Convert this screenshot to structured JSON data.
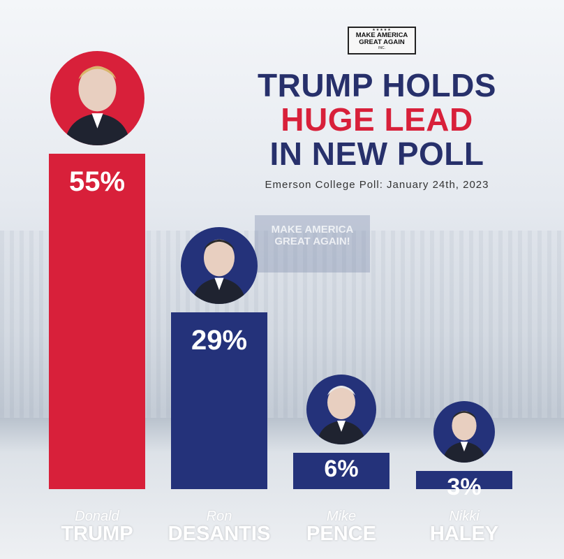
{
  "logo": {
    "stars": "★★★★★",
    "line1": "MAKE AMERICA",
    "line2": "GREAT AGAIN",
    "inc": "INC."
  },
  "banner_text": "MAKE AMERICA GREAT AGAIN!",
  "headline": {
    "line1": "TRUMP HOLDS",
    "line2": "HUGE LEAD",
    "line3": "IN NEW POLL"
  },
  "subtitle": "Emerson College Poll: January 24th, 2023",
  "colors": {
    "red": "#d8203a",
    "navy": "#27306b",
    "bar_navy": "#24327a"
  },
  "chart_data": {
    "type": "bar",
    "ylim": [
      0,
      55
    ],
    "categories": [
      "Donald TRUMP",
      "Ron DESANTIS",
      "Mike PENCE",
      "Nikki HALEY"
    ],
    "values": [
      55,
      29,
      6,
      3
    ],
    "labels": [
      "55%",
      "29%",
      "6%",
      "3%"
    ],
    "first_names": [
      "Donald",
      "Ron",
      "Mike",
      "Nikki"
    ],
    "last_names": [
      "TRUMP",
      "DESANTIS",
      "PENCE",
      "HALEY"
    ],
    "bar_colors": [
      "#d8203a",
      "#24327a",
      "#24327a",
      "#24327a"
    ]
  }
}
